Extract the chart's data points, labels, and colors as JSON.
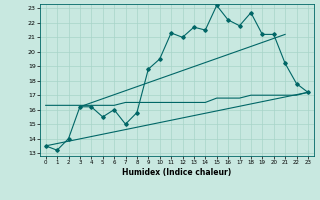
{
  "xlabel": "Humidex (Indice chaleur)",
  "ylabel": "",
  "bg_color": "#c8e8e0",
  "line_color": "#006666",
  "grid_color": "#a8d4c8",
  "xlim": [
    -0.5,
    23.5
  ],
  "ylim": [
    12.8,
    23.3
  ],
  "yticks": [
    13,
    14,
    15,
    16,
    17,
    18,
    19,
    20,
    21,
    22,
    23
  ],
  "xticks": [
    0,
    1,
    2,
    3,
    4,
    5,
    6,
    7,
    8,
    9,
    10,
    11,
    12,
    13,
    14,
    15,
    16,
    17,
    18,
    19,
    20,
    21,
    22,
    23
  ],
  "main_x": [
    0,
    1,
    2,
    3,
    4,
    5,
    6,
    7,
    8,
    9,
    10,
    11,
    12,
    13,
    14,
    15,
    16,
    17,
    18,
    19,
    20,
    21,
    22,
    23
  ],
  "main_y": [
    13.5,
    13.2,
    14.0,
    16.2,
    16.2,
    15.5,
    16.0,
    15.0,
    15.8,
    18.8,
    19.5,
    21.3,
    21.0,
    21.7,
    21.5,
    23.2,
    22.2,
    21.8,
    22.7,
    21.2,
    21.2,
    19.2,
    17.8,
    17.2
  ],
  "flat_x": [
    0,
    3,
    5,
    6,
    7,
    8,
    10,
    11,
    12,
    13,
    14,
    15,
    16,
    17,
    18,
    20,
    21,
    22,
    23
  ],
  "flat_y": [
    16.3,
    16.3,
    16.3,
    16.3,
    16.5,
    16.5,
    16.5,
    16.5,
    16.5,
    16.5,
    16.5,
    16.8,
    16.8,
    16.8,
    17.0,
    17.0,
    17.0,
    17.0,
    17.2
  ],
  "trend2_x": [
    0,
    23
  ],
  "trend2_y": [
    13.5,
    17.2
  ],
  "trend3_x": [
    3,
    21
  ],
  "trend3_y": [
    16.2,
    21.2
  ]
}
